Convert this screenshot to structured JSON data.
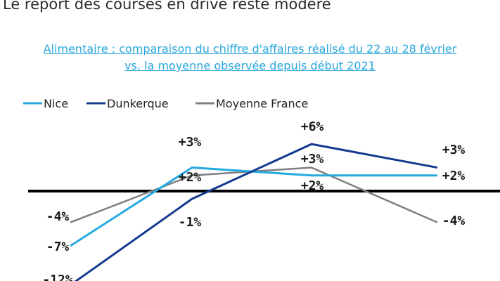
{
  "page": {
    "title": "Le report des courses en drive reste modéré",
    "subtitle_line1": "Alimentaire : comparaison du chiffre d'affaires réalisé du 22 au 28 février",
    "subtitle_line2": "vs. la moyenne observée depuis début 2021"
  },
  "colors": {
    "nice": "#24aae1",
    "dunkerque": "#143b8f",
    "moyenne": "#7f7f7f",
    "zero_line": "#000000"
  },
  "chart_data": {
    "type": "line",
    "title": "Alimentaire : comparaison du chiffre d'affaires réalisé du 22 au 28 février vs. la moyenne observée depuis début 2021",
    "categories": [
      "",
      "",
      "",
      ""
    ],
    "legend_position": "top-left",
    "grid": false,
    "ylim": [
      -12,
      7
    ],
    "series": [
      {
        "name": "Nice",
        "values": [
          -7,
          3,
          2,
          2
        ],
        "labels": [
          "-7%",
          "+3%",
          "",
          "+2%"
        ]
      },
      {
        "name": "Dunkerque",
        "values": [
          -12,
          -1,
          6,
          3
        ],
        "labels": [
          "-12%",
          "-1%",
          "+6%",
          "+3%"
        ]
      },
      {
        "name": "Moyenne France",
        "values": [
          -4,
          2,
          3,
          -4
        ],
        "labels": [
          "-4%",
          "+2%",
          "+3%",
          "-4%"
        ]
      }
    ],
    "extra_labels": [
      {
        "category_index": 2,
        "text": "+2%"
      }
    ]
  }
}
